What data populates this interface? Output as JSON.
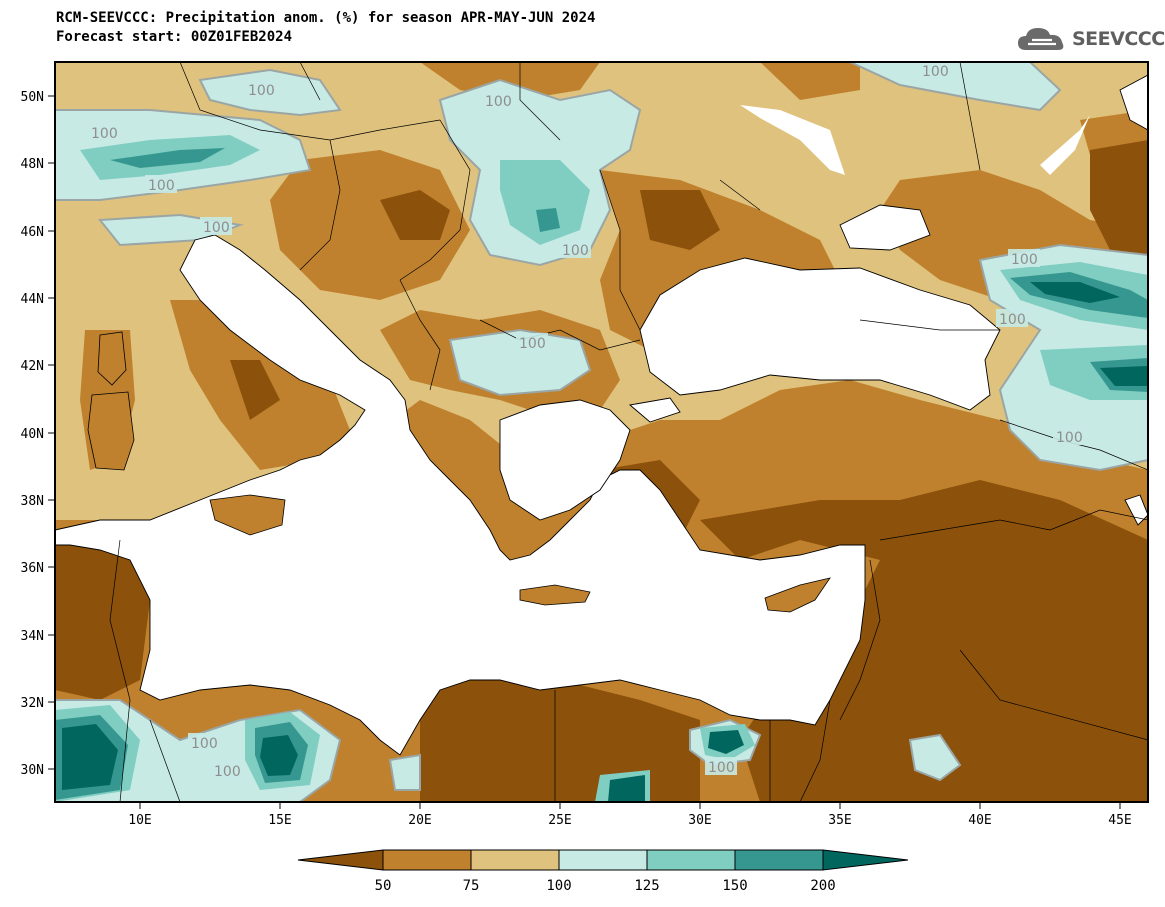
{
  "title_line1": "RCM-SEEVCCC: Precipitation anom. (%) for season APR-MAY-JUN 2024",
  "title_line2": "Forecast start: 00Z01FEB2024",
  "logo_text": "SEEVCCC",
  "logo_icon": "cloud-icon",
  "map": {
    "lat_labels": [
      "50N",
      "48N",
      "46N",
      "44N",
      "42N",
      "40N",
      "38N",
      "36N",
      "34N",
      "32N",
      "30N"
    ],
    "lon_labels": [
      "10E",
      "15E",
      "20E",
      "25E",
      "30E",
      "35E",
      "40E",
      "45E"
    ],
    "contour_labels": [
      "100",
      "100",
      "100",
      "100",
      "100",
      "100",
      "100",
      "100",
      "100",
      "100",
      "100",
      "100",
      "100",
      "100"
    ]
  },
  "colorbar": {
    "ticks": [
      "50",
      "75",
      "100",
      "125",
      "150",
      "200"
    ],
    "colors": [
      "#8c510a",
      "#bf812d",
      "#dfc27d",
      "#c7eae5",
      "#80cdc1",
      "#35978f",
      "#01665e"
    ]
  }
}
